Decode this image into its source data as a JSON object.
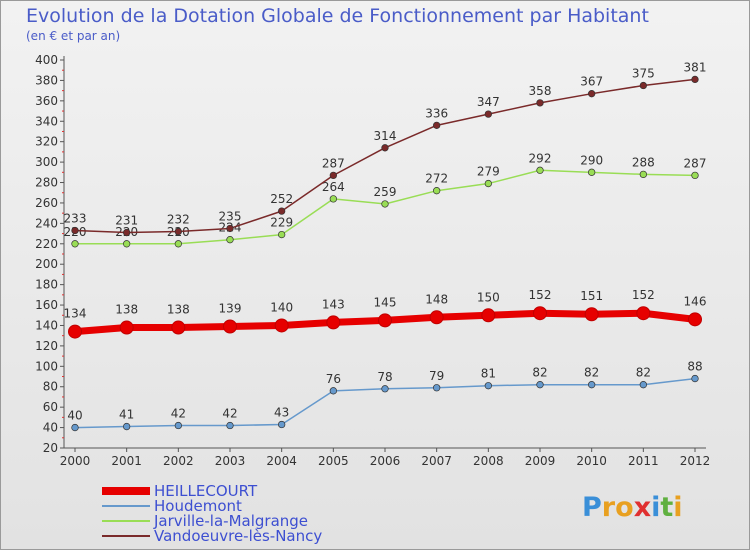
{
  "chart_data": {
    "type": "line",
    "title": "Evolution de la Dotation Globale de Fonctionnement par Habitant",
    "subtitle": "(en € et par an)",
    "xlabel": "",
    "ylabel": "",
    "x": [
      "2000",
      "2001",
      "2002",
      "2003",
      "2004",
      "2005",
      "2006",
      "2007",
      "2008",
      "2009",
      "2010",
      "2011",
      "2012"
    ],
    "ylim": [
      20,
      400
    ],
    "yticks": [
      20,
      40,
      60,
      80,
      100,
      120,
      140,
      160,
      180,
      200,
      220,
      240,
      260,
      280,
      300,
      320,
      340,
      360,
      380,
      400
    ],
    "grid": false,
    "legend_position": "bottom-left",
    "series": [
      {
        "name": "HEILLECOURT",
        "color": "#e60000",
        "values": [
          134,
          138,
          138,
          139,
          140,
          143,
          145,
          148,
          150,
          152,
          151,
          152,
          146
        ]
      },
      {
        "name": "Houdemont",
        "color": "#6699cc",
        "values": [
          40,
          41,
          42,
          42,
          43,
          76,
          78,
          79,
          81,
          82,
          82,
          82,
          88
        ]
      },
      {
        "name": "Jarville-la-Malgrange",
        "color": "#99dd55",
        "values": [
          220,
          220,
          220,
          224,
          229,
          264,
          259,
          272,
          279,
          292,
          290,
          288,
          287
        ]
      },
      {
        "name": "Vandoeuvre-lès-Nancy",
        "color": "#7a2a2a",
        "values": [
          233,
          231,
          232,
          235,
          252,
          287,
          314,
          336,
          347,
          358,
          367,
          375,
          381
        ]
      }
    ]
  },
  "logo": {
    "text": "Proxiti",
    "letters": [
      "P",
      "r",
      "o",
      "x",
      "i",
      "t",
      "i"
    ],
    "colors": [
      "#3a8fd8",
      "#e8a020",
      "#e8a020",
      "#e03030",
      "#3a8fd8",
      "#60b040",
      "#e8a020"
    ]
  }
}
